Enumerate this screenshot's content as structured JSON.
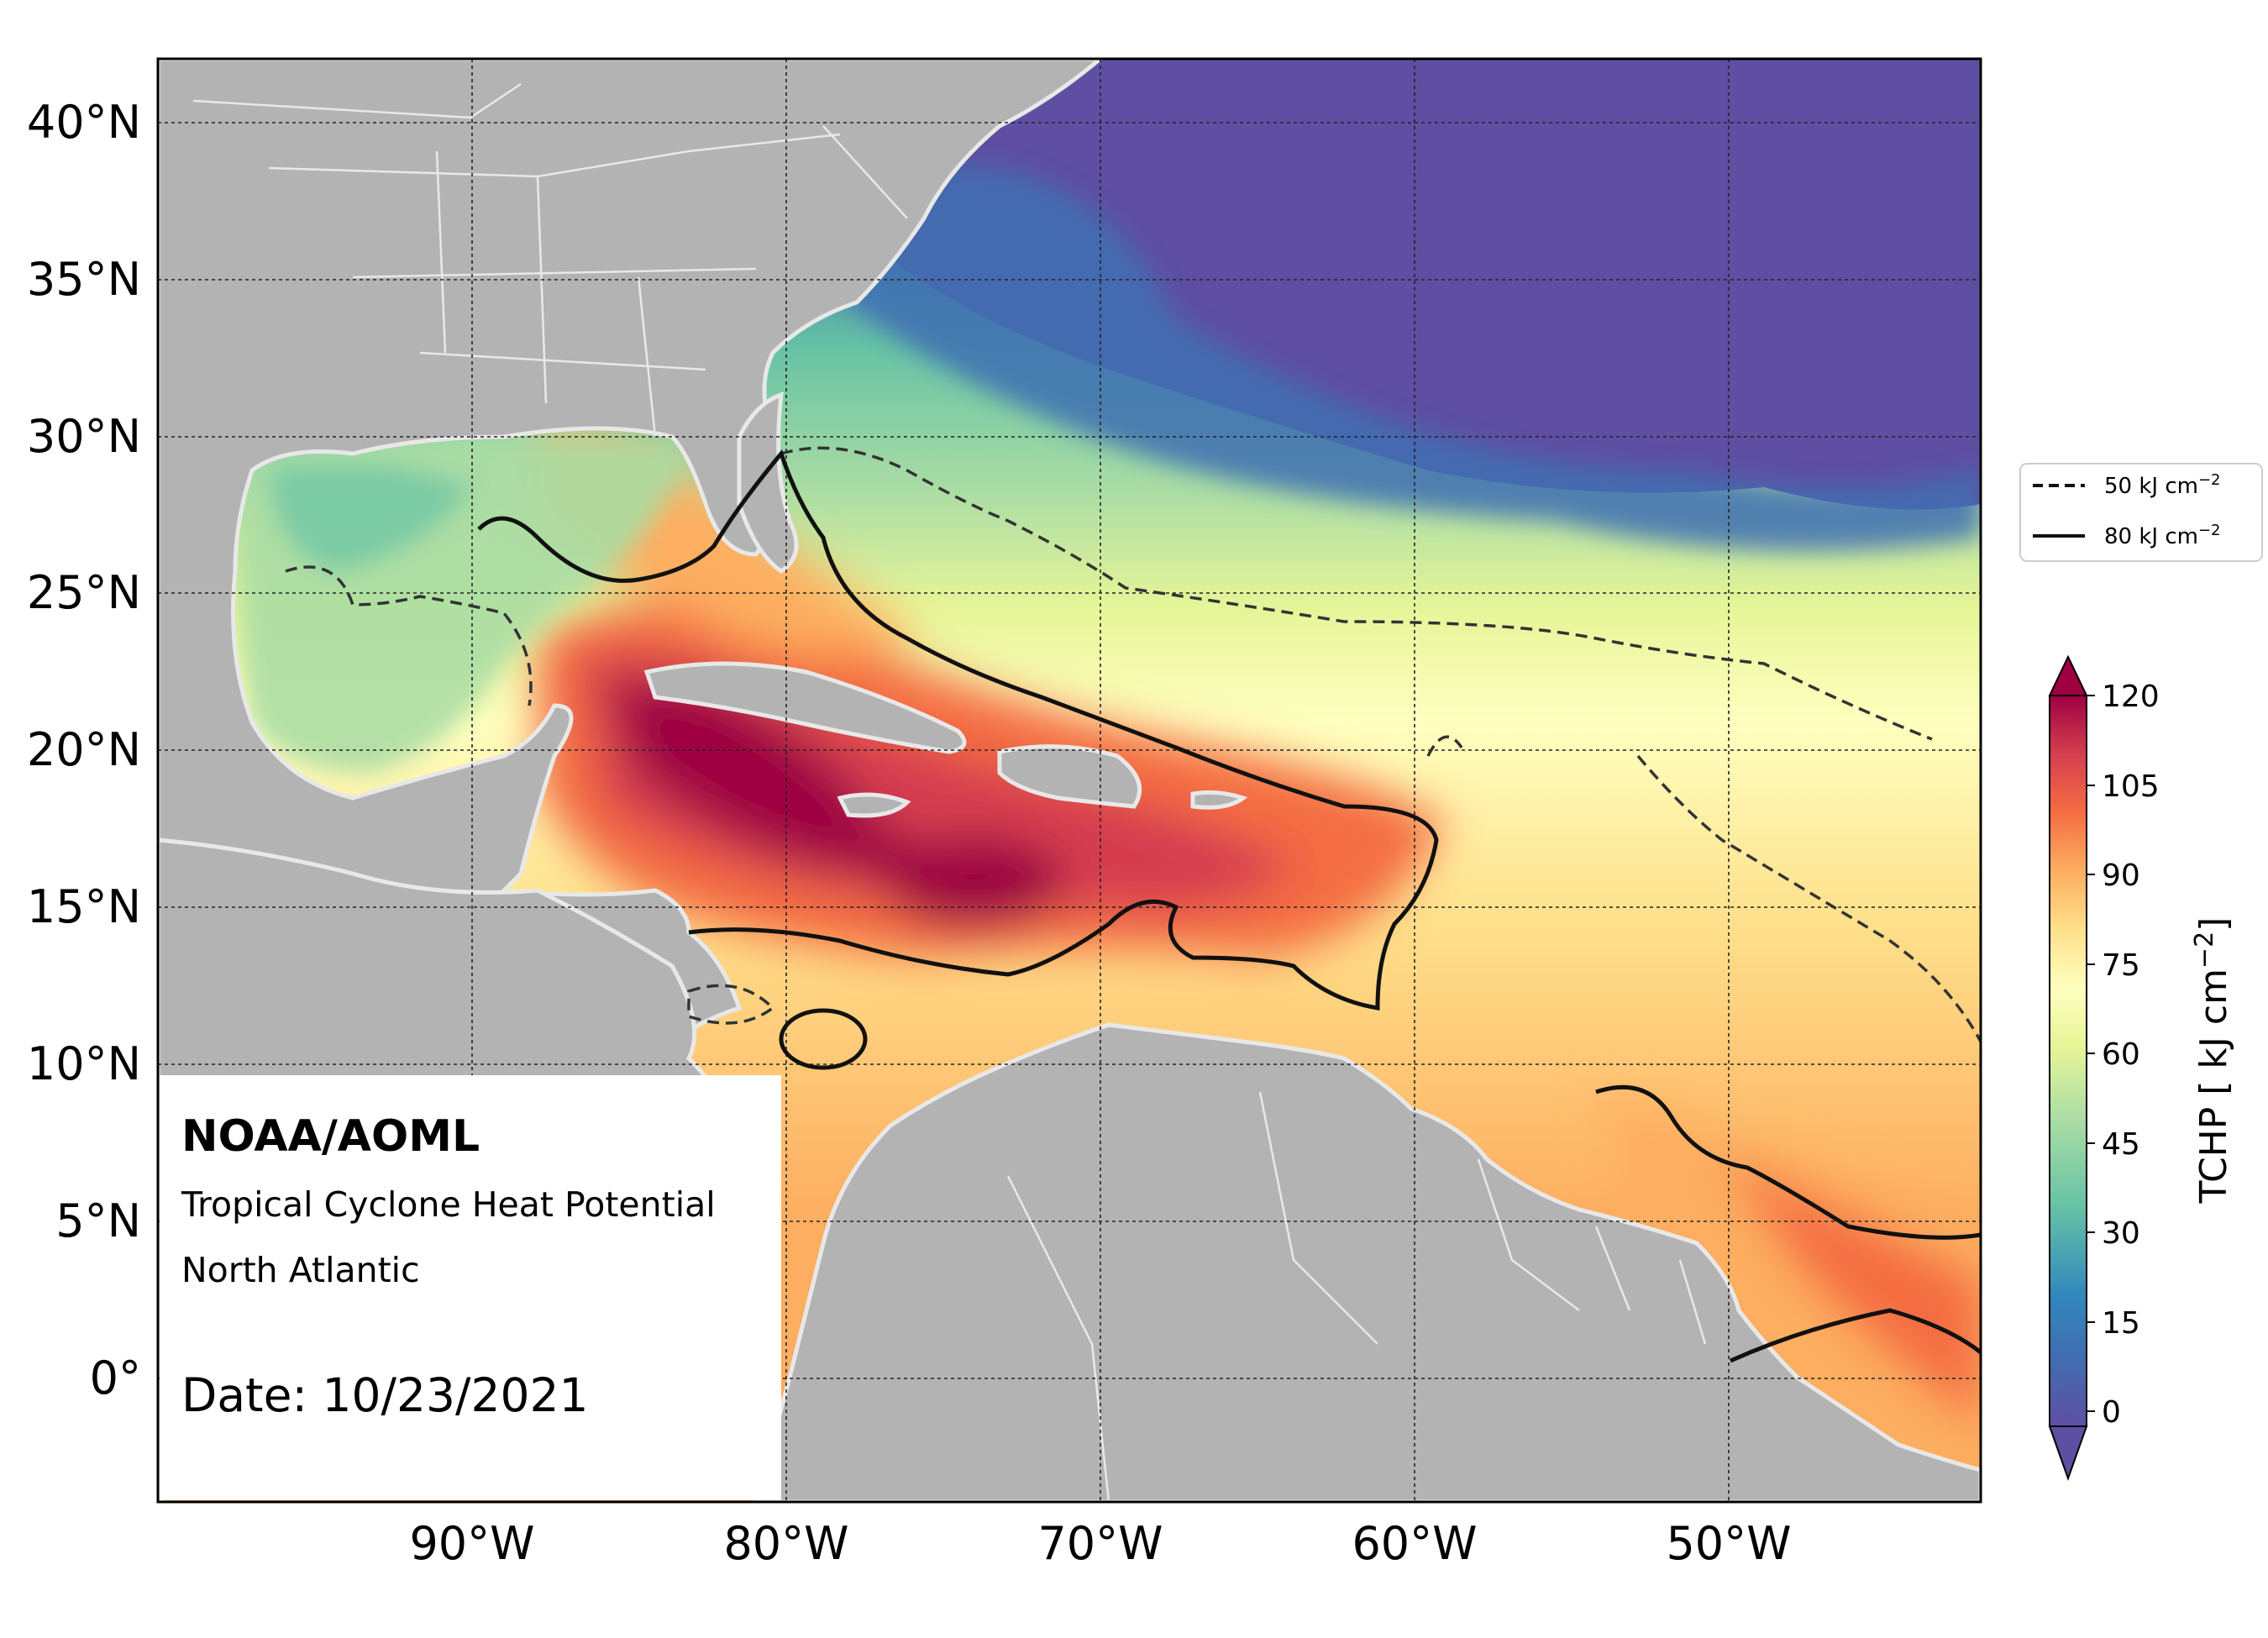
{
  "map": {
    "agency": "NOAA/AOML",
    "product": "Tropical Cyclone Heat Potential",
    "region": "North Atlantic",
    "date_text": "Date: 10/23/2021",
    "lat_ticks": [
      "40°N",
      "35°N",
      "30°N",
      "25°N",
      "20°N",
      "15°N",
      "10°N",
      "5°N",
      "0°"
    ],
    "lon_ticks": [
      "90°W",
      "80°W",
      "70°W",
      "60°W",
      "50°W"
    ],
    "extent": {
      "lon_min": -100,
      "lon_max": -42,
      "lat_min": -4,
      "lat_max": 42
    }
  },
  "colorbar": {
    "label": "TCHP [ kJ cm",
    "label_sup": "−2",
    "label_end": "]",
    "ticks": [
      "120",
      "105",
      "90",
      "75",
      "60",
      "45",
      "30",
      "15",
      "0"
    ],
    "range": [
      -5,
      120
    ],
    "colors": [
      "#5e4fa2",
      "#3f6fb2",
      "#3288bd",
      "#66c2a5",
      "#abdda4",
      "#e6f598",
      "#ffffbf",
      "#fee08b",
      "#fdae61",
      "#f46d43",
      "#d53e4f",
      "#9e0142"
    ]
  },
  "legend": {
    "items": [
      {
        "label": "50 kJ cm",
        "sup": "−2",
        "style": "dashed"
      },
      {
        "label": "80 kJ cm",
        "sup": "−2",
        "style": "solid"
      }
    ]
  },
  "colors": {
    "land": "#b3b3b3",
    "border": "#e8e8e8",
    "deep_blue": "#6358a8"
  }
}
